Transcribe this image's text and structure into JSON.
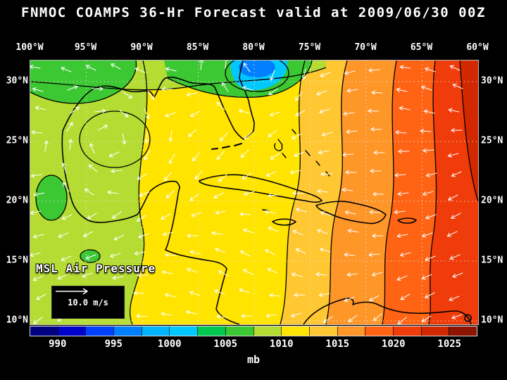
{
  "title": "FNMOC COAMPS 36-Hr Forecast valid at 2009/06/30 00Z",
  "map": {
    "lon_labels": [
      "100°W",
      "95°W",
      "90°W",
      "85°W",
      "80°W",
      "75°W",
      "70°W",
      "65°W",
      "60°W"
    ],
    "lat_labels": [
      "30°N",
      "25°N",
      "20°N",
      "15°N",
      "10°N"
    ],
    "field_label": "MSL Air Pressure",
    "wind_scale_label": "10.0 m/s"
  },
  "colorbar": {
    "unit": "mb",
    "tick_labels": [
      "990",
      "995",
      "1000",
      "1005",
      "1010",
      "1015",
      "1020",
      "1025"
    ],
    "colors": [
      "#000080",
      "#0000cd",
      "#0040ff",
      "#0080ff",
      "#00b4ff",
      "#00c8ff",
      "#00c850",
      "#3cc832",
      "#b4dc32",
      "#ffe400",
      "#ffc832",
      "#ff9628",
      "#ff6414",
      "#f03c0a",
      "#d22800",
      "#8c1400"
    ]
  },
  "chart_data": {
    "type": "heatmap",
    "title": "FNMOC COAMPS 36-Hr Forecast valid at 2009/06/30 00Z",
    "variable": "MSL Air Pressure",
    "unit": "mb",
    "colorbar_ticks": [
      990,
      995,
      1000,
      1005,
      1010,
      1015,
      1020,
      1025
    ],
    "x_ticks_lon": [
      "100°W",
      "95°W",
      "90°W",
      "85°W",
      "80°W",
      "75°W",
      "70°W",
      "65°W",
      "60°W"
    ],
    "y_ticks_lat": [
      "30°N",
      "25°N",
      "20°N",
      "15°N",
      "10°N"
    ],
    "wind_reference_vector": "10.0 m/s",
    "pattern": "low pressure (~1000 mb) north of Gulf coast at top-center; ~1008-1012 mb over Gulf of Mexico; high pressure ridge 1016-1026 mb over western Atlantic at right"
  }
}
